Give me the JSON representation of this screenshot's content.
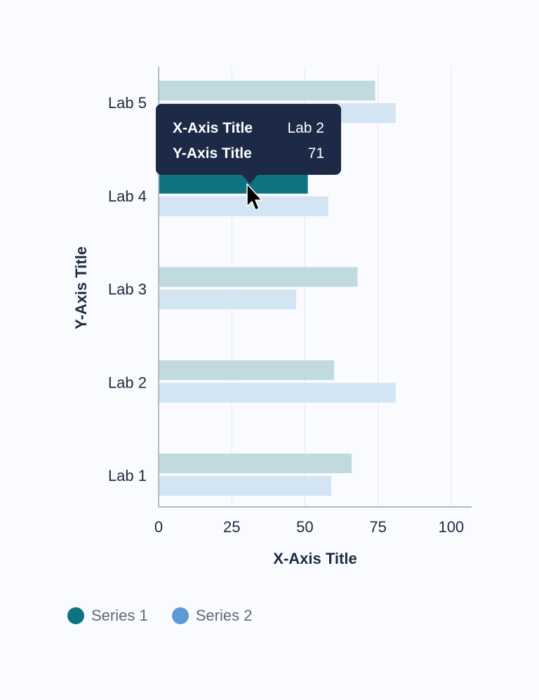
{
  "chart_data": {
    "type": "bar",
    "orientation": "horizontal",
    "categories": [
      "Lab 1",
      "Lab 2",
      "Lab 3",
      "Lab 4",
      "Lab 5"
    ],
    "series": [
      {
        "name": "Series 1",
        "values": [
          66,
          60,
          68,
          51,
          74
        ],
        "color": "#0e7280",
        "muted_color": "#c0dadd"
      },
      {
        "name": "Series 2",
        "values": [
          59,
          81,
          47,
          58,
          81
        ],
        "color": "#5b9bd5",
        "muted_color": "#d3e4f3"
      }
    ],
    "xlabel": "X-Axis Title",
    "ylabel": "Y-Axis Title",
    "xlim": [
      0,
      107
    ],
    "xticks": [
      0,
      25,
      50,
      75,
      100
    ],
    "grid": true,
    "legend": "bottom-left",
    "highlight": {
      "series": 0,
      "category": "Lab 4"
    }
  },
  "tooltip": {
    "rows": [
      {
        "key": "X-Axis Title",
        "value": "Lab 2"
      },
      {
        "key": "Y-Axis Title",
        "value": "71"
      }
    ]
  }
}
